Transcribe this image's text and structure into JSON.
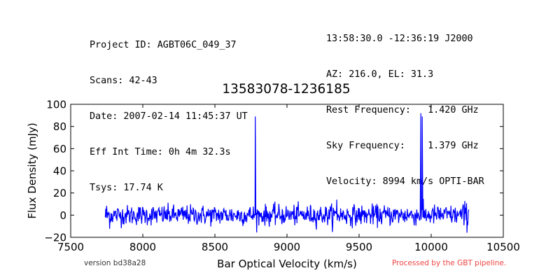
{
  "header": {
    "left": [
      "Project ID: AGBT06C_049_37",
      "Scans: 42-43",
      "Date: 2007-02-14 11:45:37 UT",
      "Eff Int Time: 0h 4m 32.3s",
      "Tsys: 17.74 K"
    ],
    "right": [
      "13:58:30.0 -12:36:19 J2000",
      "AZ: 216.0, EL: 31.3",
      "Rest Frequency:   1.420 GHz",
      "Sky Frequency:    1.379 GHz",
      "Velocity: 8994 km/s OPTI-BAR"
    ]
  },
  "footer": {
    "version": "version bd38a28",
    "processed": "Processed by the GBT pipeline.",
    "processed_color": "#ee4444"
  },
  "chart_data": {
    "type": "line",
    "title": "13583078-1236185",
    "xlabel": "Bar Optical Velocity (km/s)",
    "ylabel": "Flux Density (mJy)",
    "xlim": [
      7500,
      10500
    ],
    "ylim": [
      -20,
      100
    ],
    "xticks": [
      7500,
      8000,
      8500,
      9000,
      9500,
      10000,
      10500
    ],
    "yticks": [
      -20,
      0,
      20,
      40,
      60,
      80,
      100
    ],
    "grid": false,
    "series": [
      {
        "color": "#0000ff",
        "x_range": [
          7740,
          10260
        ],
        "baseline": 0,
        "noise_rms": 4.5,
        "noise_edge_rms": 6,
        "peaks": [
          {
            "x": 8780,
            "y": 89
          },
          {
            "x": 9928,
            "y": 92
          },
          {
            "x": 9938,
            "y": 89
          },
          {
            "x": 9345,
            "y": 14
          }
        ]
      }
    ]
  }
}
